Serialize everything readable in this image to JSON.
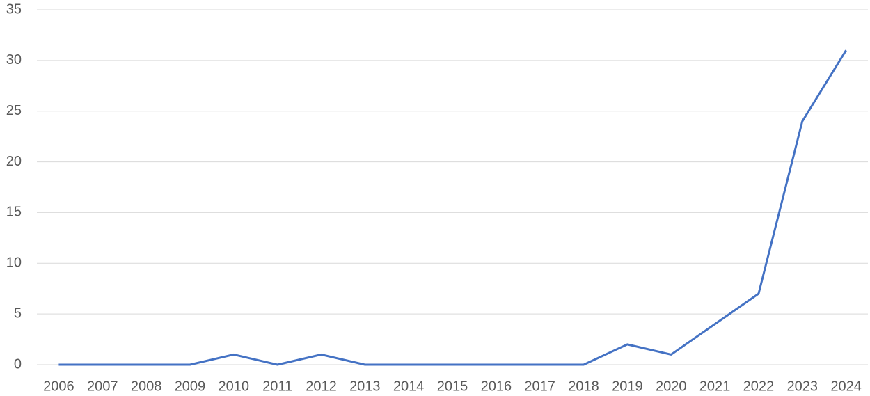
{
  "chart_data": {
    "type": "line",
    "categories": [
      "2006",
      "2007",
      "2008",
      "2009",
      "2010",
      "2011",
      "2012",
      "2013",
      "2014",
      "2015",
      "2016",
      "2017",
      "2018",
      "2019",
      "2020",
      "2021",
      "2022",
      "2023",
      "2024"
    ],
    "values": [
      0,
      0,
      0,
      0,
      1,
      0,
      1,
      0,
      0,
      0,
      0,
      0,
      0,
      2,
      1,
      4,
      7,
      24,
      31
    ],
    "color": "#4472c4",
    "ylim": [
      0,
      35
    ],
    "yticks": [
      0,
      5,
      10,
      15,
      20,
      25,
      30,
      35
    ],
    "grid": true
  }
}
